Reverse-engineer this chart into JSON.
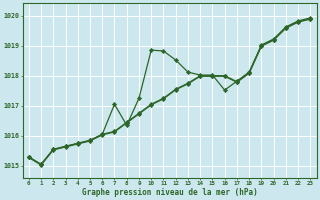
{
  "xlabel": "Graphe pression niveau de la mer (hPa)",
  "xlim": [
    -0.5,
    23.5
  ],
  "ylim": [
    1014.6,
    1020.4
  ],
  "yticks": [
    1015,
    1016,
    1017,
    1018,
    1019,
    1020
  ],
  "xticks": [
    0,
    1,
    2,
    3,
    4,
    5,
    6,
    7,
    8,
    9,
    10,
    11,
    12,
    13,
    14,
    15,
    16,
    17,
    18,
    19,
    20,
    21,
    22,
    23
  ],
  "background_color": "#cce8ee",
  "grid_color": "#ffffff",
  "line_color": "#2d6628",
  "series1": [
    1015.3,
    1015.05,
    1015.55,
    1015.65,
    1015.75,
    1015.85,
    1016.05,
    1017.05,
    1016.35,
    1017.25,
    1018.85,
    1018.82,
    1018.52,
    1018.12,
    1018.02,
    1018.02,
    1017.52,
    1017.82,
    1018.12,
    1019.02,
    1019.22,
    1019.62,
    1019.82,
    1019.92
  ],
  "series2": [
    1015.3,
    1015.05,
    1015.55,
    1015.65,
    1015.75,
    1015.85,
    1016.05,
    1016.15,
    1016.45,
    1016.75,
    1017.05,
    1017.25,
    1017.55,
    1017.75,
    1018.0,
    1018.0,
    1018.0,
    1017.8,
    1018.1,
    1019.0,
    1019.2,
    1019.6,
    1019.8,
    1019.9
  ],
  "series3": [
    1015.28,
    1015.03,
    1015.53,
    1015.63,
    1015.73,
    1015.83,
    1016.03,
    1016.13,
    1016.43,
    1016.73,
    1017.03,
    1017.23,
    1017.53,
    1017.73,
    1017.98,
    1017.98,
    1017.98,
    1017.78,
    1018.08,
    1018.98,
    1019.18,
    1019.58,
    1019.78,
    1019.88
  ]
}
